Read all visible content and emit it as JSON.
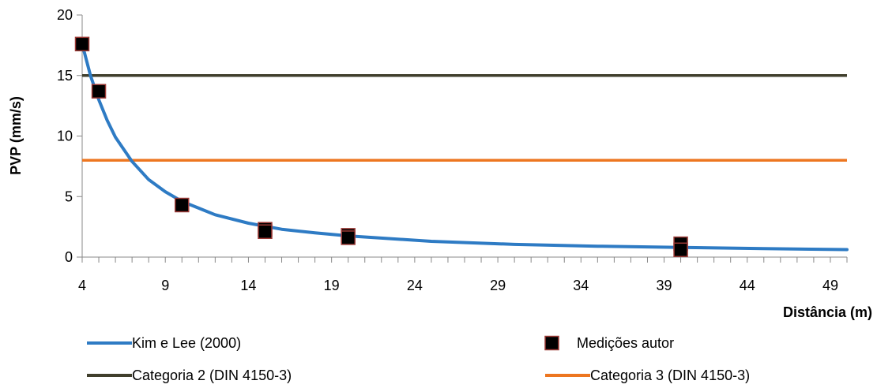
{
  "chart_data": {
    "type": "line",
    "xlabel": "Distância (m)",
    "ylabel": "PVP (mm/s)",
    "xlim": [
      4,
      50
    ],
    "ylim": [
      0,
      20
    ],
    "x_ticks": [
      4,
      9,
      14,
      19,
      24,
      29,
      34,
      39,
      44,
      49
    ],
    "y_ticks": [
      0,
      5,
      10,
      15,
      20
    ],
    "grid": false,
    "legend_position": "bottom",
    "series": [
      {
        "name": "Kim e Lee (2000)",
        "kind": "line",
        "color": "#2E7BC4",
        "x": [
          4,
          4.5,
          5,
          5.5,
          6,
          7,
          8,
          9,
          10,
          12,
          14,
          16,
          18,
          20,
          25,
          30,
          35,
          40,
          45,
          50
        ],
        "y": [
          17.6,
          15.0,
          13.0,
          11.3,
          9.9,
          7.9,
          6.4,
          5.4,
          4.6,
          3.5,
          2.8,
          2.3,
          2.0,
          1.75,
          1.3,
          1.05,
          0.9,
          0.8,
          0.7,
          0.62
        ]
      },
      {
        "name": "Medições autor",
        "kind": "marker",
        "color": "#000000",
        "x": [
          4,
          5,
          10,
          15,
          15,
          20,
          20,
          40,
          40
        ],
        "y": [
          17.6,
          13.7,
          4.3,
          2.3,
          2.1,
          1.8,
          1.6,
          1.1,
          0.6
        ]
      },
      {
        "name": "Categoria 2 (DIN 4150-3)",
        "kind": "hline",
        "color": "#403F2C",
        "x": [
          4,
          50
        ],
        "y": [
          15,
          15
        ]
      },
      {
        "name": "Categoria 3 (DIN 4150-3)",
        "kind": "hline",
        "color": "#ED7620",
        "x": [
          4,
          50
        ],
        "y": [
          8,
          8
        ]
      }
    ]
  }
}
